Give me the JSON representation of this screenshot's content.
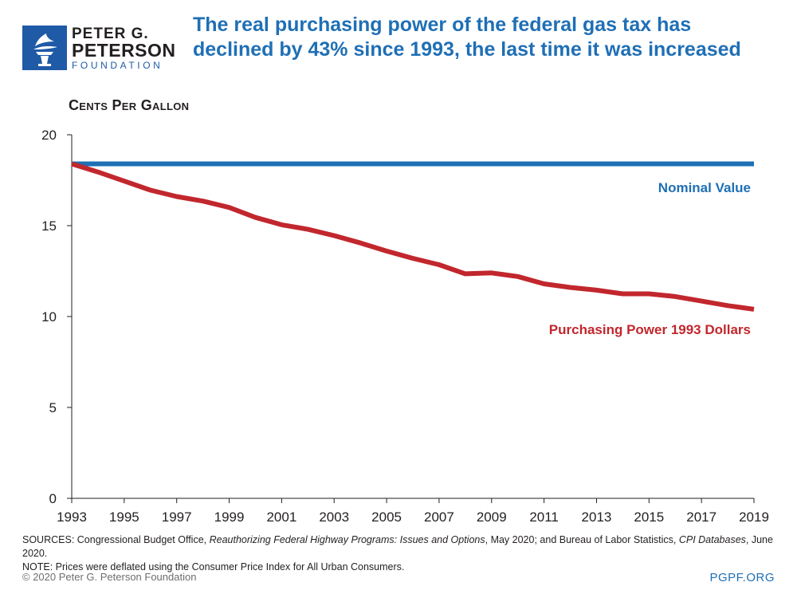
{
  "logo": {
    "line1": "PETER G.",
    "line2": "PETERSON",
    "line3": "FOUNDATION",
    "icon": "torch-icon"
  },
  "unit_label": "Cents Per Gallon",
  "chart_data": {
    "type": "line",
    "title": "The real purchasing power of the federal gas tax has declined by 43% since 1993, the last time it was increased",
    "ylabel": "Cents Per Gallon",
    "xlabel": "",
    "ylim": [
      0,
      20
    ],
    "yticks": [
      0,
      5,
      10,
      15,
      20
    ],
    "xlim": [
      1993,
      2019
    ],
    "xticks": [
      1993,
      1995,
      1997,
      1999,
      2001,
      2003,
      2005,
      2007,
      2009,
      2011,
      2013,
      2015,
      2017,
      2019
    ],
    "grid": false,
    "x": [
      1993,
      1994,
      1995,
      1996,
      1997,
      1998,
      1999,
      2000,
      2001,
      2002,
      2003,
      2004,
      2005,
      2006,
      2007,
      2008,
      2009,
      2010,
      2011,
      2012,
      2013,
      2014,
      2015,
      2016,
      2017,
      2018,
      2019
    ],
    "series": [
      {
        "name": "Nominal Value",
        "color": "#1f6fb5",
        "values": [
          18.4,
          18.4,
          18.4,
          18.4,
          18.4,
          18.4,
          18.4,
          18.4,
          18.4,
          18.4,
          18.4,
          18.4,
          18.4,
          18.4,
          18.4,
          18.4,
          18.4,
          18.4,
          18.4,
          18.4,
          18.4,
          18.4,
          18.4,
          18.4,
          18.4,
          18.4,
          18.4
        ]
      },
      {
        "name": "Purchasing Power 1993 Dollars",
        "color": "#c1272d",
        "values": [
          18.4,
          17.95,
          17.45,
          16.95,
          16.6,
          16.35,
          16.0,
          15.45,
          15.05,
          14.8,
          14.45,
          14.05,
          13.6,
          13.2,
          12.85,
          12.35,
          12.4,
          12.2,
          11.8,
          11.6,
          11.45,
          11.25,
          11.25,
          11.1,
          10.85,
          10.6,
          10.4
        ]
      }
    ]
  },
  "notes": {
    "sources_prefix": "SOURCES: Congressional Budget Office, ",
    "sources_title1": "Reauthorizing Federal Highway Programs: Issues and Options",
    "sources_mid": ", May 2020; and Bureau of Labor Statistics, ",
    "sources_title2": "CPI Databases",
    "sources_suffix": ", June 2020.",
    "note": "NOTE: Prices were deflated using the Consumer Price Index for All Urban Consumers."
  },
  "footer": {
    "copyright": "© 2020 Peter G. Peterson Foundation",
    "site": "PGPF.ORG"
  }
}
